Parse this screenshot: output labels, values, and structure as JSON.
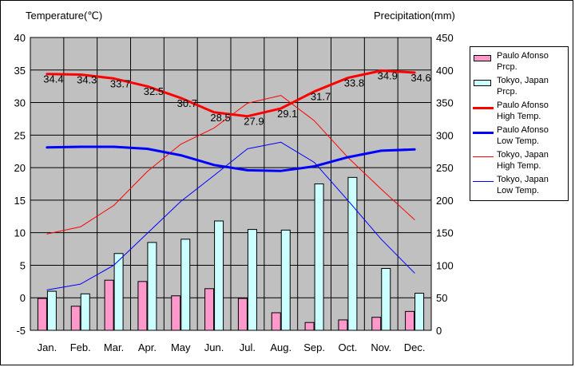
{
  "chart_data": {
    "type": "bar+line",
    "categories": [
      "Jan.",
      "Feb.",
      "Mar.",
      "Apr.",
      "May",
      "Jun.",
      "Jul.",
      "Aug.",
      "Sep.",
      "Oct.",
      "Nov.",
      "Dec."
    ],
    "y_left": {
      "label": "Temperature(℃)",
      "range": [
        -5,
        40
      ],
      "ticks": [
        -5,
        0,
        5,
        10,
        15,
        20,
        25,
        30,
        35,
        40
      ]
    },
    "y_right": {
      "label": "Precipitation(mm)",
      "range": [
        0,
        450
      ],
      "ticks": [
        0,
        50,
        100,
        150,
        200,
        250,
        300,
        350,
        400,
        450
      ]
    },
    "grid": true,
    "plot_background": "#c0c0c0",
    "legend_position": "right",
    "bar_series": [
      {
        "name": "Paulo Afonso Prcp.",
        "axis": "right",
        "color": "#ff99cc",
        "values": [
          49,
          37,
          77,
          75,
          53,
          64,
          49,
          27,
          12,
          16,
          20,
          29
        ]
      },
      {
        "name": "Tokyo, Japan Prcp.",
        "axis": "right",
        "color": "#ccffff",
        "values": [
          60,
          56,
          118,
          135,
          140,
          168,
          155,
          154,
          225,
          235,
          95,
          57
        ]
      }
    ],
    "line_series": [
      {
        "name": "Paulo Afonso High Temp.",
        "axis": "left",
        "color": "#ff0000",
        "width": 3,
        "values": [
          34.4,
          34.3,
          33.7,
          32.5,
          30.7,
          28.5,
          27.9,
          29.1,
          31.7,
          33.8,
          34.9,
          34.6
        ],
        "data_labels": [
          "34.4",
          "34.3",
          "33.7",
          "32.5",
          "30.7",
          "28.5",
          "27.9",
          "29.1",
          "31.7",
          "33.8",
          "34.9",
          "34.6"
        ]
      },
      {
        "name": "Paulo Afonso Low Temp.",
        "axis": "left",
        "color": "#0000ff",
        "width": 3,
        "values": [
          23.1,
          23.2,
          23.2,
          22.9,
          21.9,
          20.4,
          19.6,
          19.5,
          20.2,
          21.6,
          22.6,
          22.8
        ]
      },
      {
        "name": "Tokyo, Japan High Temp.",
        "axis": "left",
        "color": "#ff0000",
        "width": 1,
        "values": [
          9.8,
          10.9,
          14.2,
          19.4,
          23.6,
          26.1,
          29.9,
          31.1,
          27.2,
          21.6,
          16.7,
          12.0
        ]
      },
      {
        "name": "Tokyo, Japan Low Temp.",
        "axis": "left",
        "color": "#0000ff",
        "width": 1,
        "values": [
          1.2,
          2.1,
          5.0,
          9.9,
          14.8,
          18.8,
          22.9,
          23.9,
          20.8,
          15.0,
          9.0,
          3.8
        ]
      }
    ]
  },
  "legend": [
    {
      "label": "Paulo Afonso\nPrcp.",
      "kind": "bar",
      "color": "#ff99cc"
    },
    {
      "label": "Tokyo, Japan\nPrcp.",
      "kind": "bar",
      "color": "#ccffff"
    },
    {
      "label": "Paulo Afonso\nHigh Temp.",
      "kind": "line",
      "color": "#ff0000",
      "width": 3
    },
    {
      "label": "Paulo Afonso\nLow Temp.",
      "kind": "line",
      "color": "#0000ff",
      "width": 3
    },
    {
      "label": "Tokyo, Japan\nHigh Temp.",
      "kind": "line",
      "color": "#ff0000",
      "width": 1
    },
    {
      "label": "Tokyo, Japan\nLow Temp.",
      "kind": "line",
      "color": "#0000ff",
      "width": 1
    }
  ]
}
